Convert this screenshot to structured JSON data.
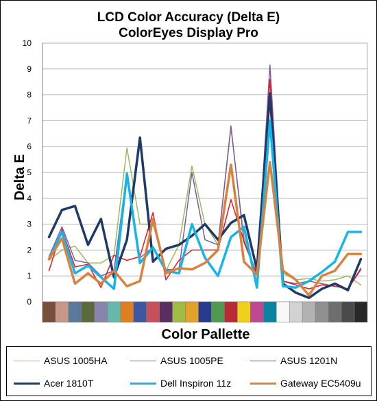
{
  "chart_data": {
    "type": "line",
    "title": "LCD Color Accuracy (Delta E)",
    "subtitle": "ColorEyes Display Pro",
    "xlabel": "Color Pallette",
    "ylabel": "Delta E",
    "ylim": [
      0,
      10
    ],
    "yticks": [
      "0",
      "1",
      "2",
      "3",
      "4",
      "5",
      "6",
      "7",
      "8",
      "9",
      "10"
    ],
    "grid": true,
    "legend_position": "bottom",
    "palette_colors": [
      "#7a4e3c",
      "#c9968a",
      "#5b7a9a",
      "#5a6a3a",
      "#8a84ad",
      "#66b8a8",
      "#e07e22",
      "#3f56a0",
      "#c8505c",
      "#5a2e60",
      "#a0bc46",
      "#e4a228",
      "#2a3a8c",
      "#4e9a4e",
      "#b82a36",
      "#f0d018",
      "#c04890",
      "#0a82a0",
      "#f8f8f8",
      "#d2d2d2",
      "#b2b2b2",
      "#909090",
      "#6e6e6e",
      "#4a4a4a",
      "#282828"
    ],
    "series": [
      {
        "name": "ASUS 1005HA",
        "color": "#9bbb59",
        "width": 1.5,
        "values": [
          1.6,
          2.0,
          2.15,
          1.5,
          1.5,
          1.8,
          5.95,
          3.0,
          3.0,
          1.2,
          2.2,
          5.25,
          3.0,
          2.2,
          6.7,
          2.5,
          1.05,
          7.8,
          1.1,
          0.85,
          0.9,
          0.8,
          0.85,
          1.0,
          0.65
        ]
      },
      {
        "name": "ASUS 1005PE",
        "color": "#7f5aa2",
        "width": 1.5,
        "values": [
          1.75,
          2.9,
          1.6,
          1.5,
          1.0,
          1.2,
          5.0,
          1.7,
          2.1,
          1.25,
          1.25,
          5.0,
          2.4,
          2.2,
          6.8,
          2.3,
          1.05,
          9.15,
          0.8,
          0.7,
          0.8,
          0.7,
          0.6,
          0.5,
          1.3
        ]
      },
      {
        "name": "ASUS 1201N",
        "color": "#e8171f",
        "width": 1.5,
        "values": [
          1.2,
          2.8,
          1.35,
          1.45,
          0.55,
          1.8,
          1.6,
          1.75,
          3.45,
          0.85,
          1.6,
          2.0,
          2.0,
          2.0,
          3.95,
          2.35,
          1.05,
          8.6,
          0.8,
          0.65,
          0.5,
          0.65,
          0.6,
          0.5,
          1.25
        ]
      },
      {
        "name": "Acer 1810T",
        "color": "#1f3a66",
        "width": 3.5,
        "values": [
          2.5,
          3.55,
          3.7,
          2.2,
          3.2,
          0.95,
          2.4,
          6.35,
          1.55,
          2.05,
          2.2,
          2.55,
          3.0,
          2.4,
          3.05,
          3.35,
          1.25,
          8.05,
          0.7,
          0.35,
          0.15,
          0.5,
          0.7,
          0.45,
          1.65
        ]
      },
      {
        "name": "Dell Inspiron 11z",
        "color": "#17b4e8",
        "width": 3.5,
        "values": [
          1.65,
          2.7,
          1.1,
          1.4,
          0.95,
          0.5,
          4.95,
          1.5,
          2.1,
          1.2,
          1.1,
          3.0,
          1.7,
          1.0,
          2.5,
          2.9,
          0.55,
          7.0,
          0.6,
          0.55,
          0.8,
          1.15,
          1.55,
          2.7,
          2.7
        ]
      },
      {
        "name": "Gateway EC5409u",
        "color": "#d9823f",
        "width": 3.5,
        "values": [
          1.65,
          2.45,
          0.7,
          1.1,
          0.7,
          1.2,
          0.6,
          0.8,
          3.2,
          1.1,
          1.3,
          1.25,
          1.5,
          2.0,
          5.3,
          1.55,
          1.05,
          5.4,
          1.2,
          0.85,
          0.25,
          1.0,
          1.2,
          1.85,
          1.85
        ]
      }
    ]
  }
}
